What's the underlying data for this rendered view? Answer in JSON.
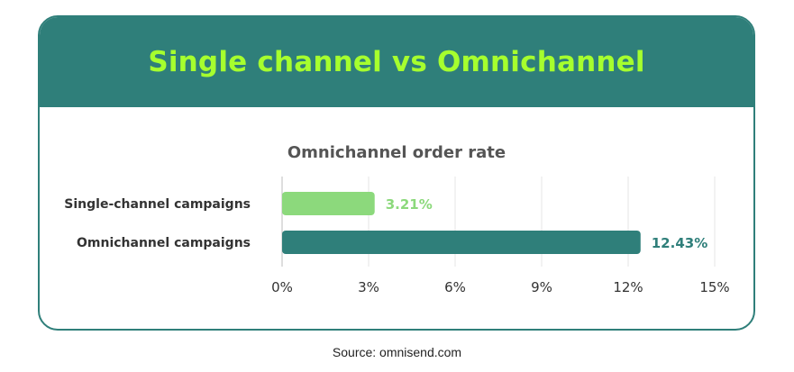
{
  "card": {
    "title": "Single channel vs Omnichannel"
  },
  "source": "Source: omnisend.com",
  "colors": {
    "header_bg": "#2f7f7a",
    "title_text": "#a6ff2e",
    "single_bar": "#8cd97c",
    "omni_bar": "#2f7f7a",
    "grid": "#e4e4e4",
    "axis_text": "#333333",
    "chart_title": "#555555"
  },
  "chart_data": {
    "type": "bar",
    "orientation": "horizontal",
    "title": "Omnichannel order rate",
    "categories": [
      "Single-channel campaigns",
      "Omnichannel campaigns"
    ],
    "values": [
      3.21,
      12.43
    ],
    "data_labels": [
      "3.21%",
      "12.43%"
    ],
    "xlim": [
      0,
      15
    ],
    "xticks": [
      0,
      3,
      6,
      9,
      12,
      15
    ],
    "xtick_labels": [
      "0%",
      "3%",
      "6%",
      "9%",
      "12%",
      "15%"
    ],
    "grid": true,
    "legend": "none"
  }
}
